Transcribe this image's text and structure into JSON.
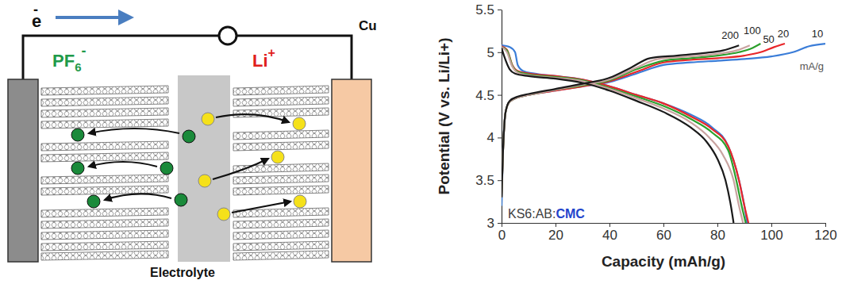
{
  "diagram": {
    "electron": {
      "text": "e",
      "superscript": "-"
    },
    "anion": {
      "text": "PF",
      "subscript": "6",
      "superscript": "-"
    },
    "cation": {
      "text": "Li",
      "superscript": "+"
    },
    "electrode_label": "Cu",
    "electrolyte_label": "Electrolyte"
  },
  "chart_data": {
    "type": "line",
    "x_label": "Capacity (mAh/g)",
    "y_label": "Potential (V vs. Li/Li+)",
    "xlim": [
      0,
      120
    ],
    "xticks": [
      0,
      20,
      40,
      60,
      80,
      100,
      120
    ],
    "ylim": [
      3,
      5.5
    ],
    "yticks": [
      3,
      3.5,
      4,
      4.5,
      5,
      5.5
    ],
    "grid": false,
    "annotations": [
      {
        "parts": [
          {
            "text": "KS6:AB:",
            "color": "#404040"
          },
          {
            "text": "CMC",
            "color": "#2244cc"
          }
        ]
      },
      {
        "parts": [
          {
            "text": "mA/g",
            "color": "#555555"
          }
        ]
      }
    ],
    "series": [
      {
        "name": "10",
        "color": "#3b7dd8",
        "charge": {
          "x": [
            0,
            0.5,
            1.5,
            3,
            6,
            10,
            20,
            30,
            40,
            50,
            60,
            70,
            80,
            90,
            100,
            108,
            114,
            120
          ],
          "values": [
            3.2,
            3.8,
            4.3,
            4.42,
            4.47,
            4.5,
            4.55,
            4.6,
            4.65,
            4.75,
            4.85,
            4.88,
            4.9,
            4.92,
            4.95,
            5.0,
            5.07,
            5.1
          ]
        },
        "discharge": {
          "x": [
            0,
            3,
            5,
            6,
            8,
            12,
            20,
            30,
            40,
            50,
            60,
            70,
            78,
            84,
            88,
            90,
            91
          ],
          "values": [
            5.08,
            5.06,
            5.0,
            4.85,
            4.78,
            4.75,
            4.72,
            4.68,
            4.6,
            4.5,
            4.4,
            4.27,
            4.12,
            3.9,
            3.5,
            3.2,
            3.0
          ]
        }
      },
      {
        "name": "20",
        "color": "#e8262a",
        "charge": {
          "x": [
            0,
            0.5,
            1.5,
            3,
            6,
            10,
            20,
            30,
            40,
            50,
            60,
            70,
            80,
            90,
            96,
            101,
            105
          ],
          "values": [
            3.3,
            3.8,
            4.3,
            4.42,
            4.47,
            4.5,
            4.55,
            4.6,
            4.66,
            4.77,
            4.88,
            4.91,
            4.93,
            4.96,
            5.0,
            5.06,
            5.1
          ]
        },
        "discharge": {
          "x": [
            0,
            2,
            4,
            6,
            10,
            20,
            30,
            40,
            50,
            60,
            70,
            78,
            84,
            88,
            90,
            91.5
          ],
          "values": [
            5.07,
            5.03,
            4.85,
            4.78,
            4.75,
            4.72,
            4.68,
            4.6,
            4.5,
            4.4,
            4.25,
            4.1,
            3.9,
            3.5,
            3.2,
            3.0
          ]
        }
      },
      {
        "name": "50",
        "color": "#2ca02c",
        "charge": {
          "x": [
            0,
            0.5,
            1.5,
            3,
            6,
            10,
            20,
            30,
            40,
            50,
            60,
            70,
            80,
            88,
            93,
            96
          ],
          "values": [
            3.3,
            3.8,
            4.3,
            4.42,
            4.47,
            4.5,
            4.56,
            4.61,
            4.67,
            4.8,
            4.9,
            4.93,
            4.96,
            5.0,
            5.05,
            5.1
          ]
        },
        "discharge": {
          "x": [
            0,
            2,
            4,
            6,
            10,
            20,
            30,
            40,
            50,
            60,
            70,
            78,
            84,
            87,
            89,
            90.5
          ],
          "values": [
            5.06,
            5.02,
            4.84,
            4.77,
            4.74,
            4.71,
            4.67,
            4.58,
            4.48,
            4.37,
            4.22,
            4.06,
            3.85,
            3.5,
            3.2,
            3.0
          ]
        }
      },
      {
        "name": "100",
        "color": "#c9a3a0",
        "charge": {
          "x": [
            0,
            0.5,
            1.5,
            3,
            6,
            10,
            20,
            30,
            40,
            50,
            58,
            70,
            80,
            87,
            92
          ],
          "values": [
            3.3,
            3.8,
            4.3,
            4.42,
            4.47,
            4.5,
            4.56,
            4.62,
            4.68,
            4.82,
            4.92,
            4.95,
            4.98,
            5.02,
            5.08
          ]
        },
        "discharge": {
          "x": [
            0,
            2,
            4,
            6,
            10,
            20,
            30,
            40,
            50,
            60,
            70,
            77,
            82,
            86,
            88,
            89.5
          ],
          "values": [
            5.06,
            5.0,
            4.83,
            4.76,
            4.73,
            4.7,
            4.66,
            4.57,
            4.46,
            4.34,
            4.18,
            4.0,
            3.8,
            3.5,
            3.2,
            3.0
          ]
        }
      },
      {
        "name": "200",
        "color": "#1a1a1a",
        "charge": {
          "x": [
            0,
            0.5,
            1.5,
            3,
            6,
            10,
            20,
            30,
            40,
            48,
            55,
            65,
            75,
            82,
            88
          ],
          "values": [
            3.3,
            3.8,
            4.3,
            4.43,
            4.48,
            4.51,
            4.57,
            4.63,
            4.7,
            4.82,
            4.93,
            4.96,
            4.99,
            5.02,
            5.08
          ]
        },
        "discharge": {
          "x": [
            0,
            1,
            3,
            5,
            10,
            20,
            30,
            40,
            50,
            60,
            70,
            76,
            80,
            83,
            85,
            86
          ],
          "values": [
            5.05,
            4.95,
            4.8,
            4.75,
            4.72,
            4.69,
            4.64,
            4.55,
            4.43,
            4.3,
            4.12,
            3.95,
            3.75,
            3.5,
            3.2,
            3.0
          ]
        }
      }
    ]
  }
}
